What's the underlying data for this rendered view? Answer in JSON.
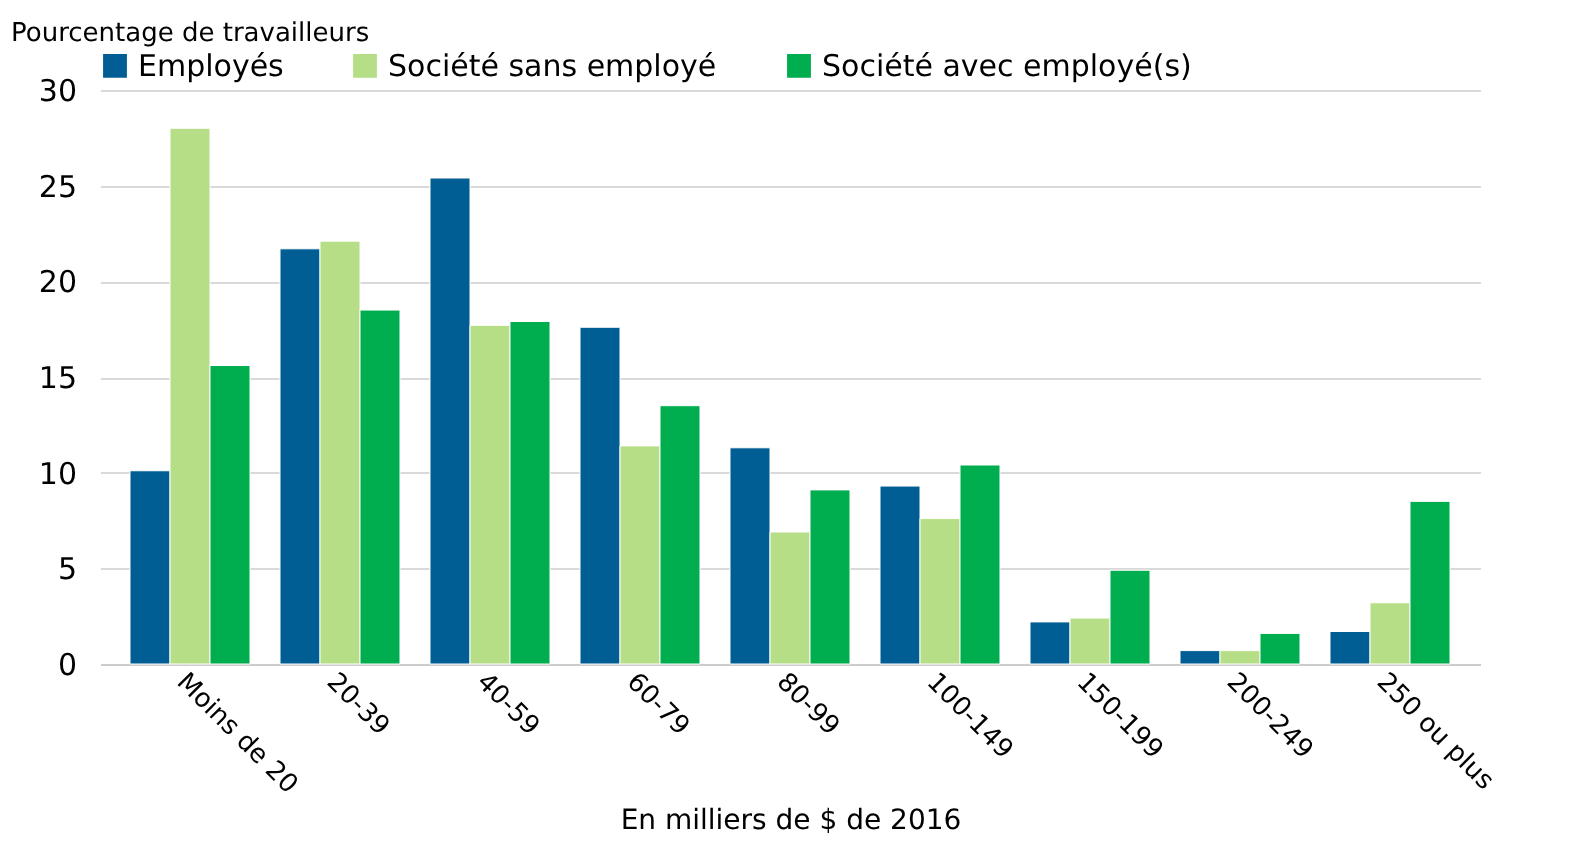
{
  "chart_data": {
    "type": "bar",
    "ylabel": "Pourcentage de travailleurs",
    "xlabel": "En milliers de $ de 2016",
    "categories": [
      "Moins de 20",
      "20-39",
      "40-59",
      "60-79",
      "80-99",
      "100-149",
      "150-199",
      "200-249",
      "250 ou plus"
    ],
    "series": [
      {
        "name": "Employés",
        "color": "#005e95",
        "values": [
          10.1,
          21.7,
          25.4,
          17.6,
          11.3,
          9.3,
          2.2,
          0.7,
          1.7
        ]
      },
      {
        "name": "Société sans employé",
        "color": "#b5de87",
        "values": [
          28.0,
          22.1,
          17.7,
          11.4,
          6.9,
          7.6,
          2.4,
          0.7,
          3.2
        ]
      },
      {
        "name": "Société avec employé(s)",
        "color": "#00ad4f",
        "values": [
          15.6,
          18.5,
          17.9,
          13.5,
          9.1,
          10.4,
          4.9,
          1.6,
          8.5
        ]
      }
    ],
    "ylim": [
      0,
      30
    ],
    "yticks": [
      0,
      5,
      10,
      15,
      20,
      25,
      30
    ],
    "grid": "y",
    "legend": "top"
  }
}
